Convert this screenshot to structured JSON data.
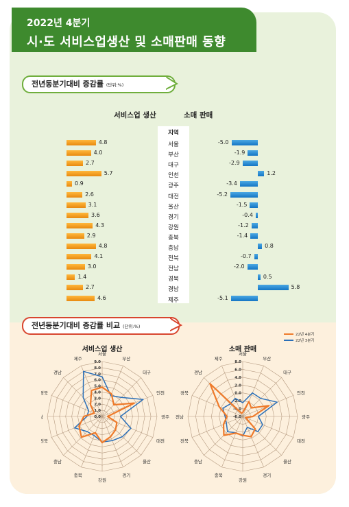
{
  "header": {
    "line1": "2022년 4분기",
    "line2": "시·도 서비스업생산 및 소매판매 동향"
  },
  "section1": {
    "title": "전년동분기대비 증감률",
    "unit": "(단위:%)"
  },
  "section2": {
    "title": "전년동분기대비 증감률 비교",
    "unit": "(단위:%)"
  },
  "colors": {
    "service": "#f39a1e",
    "retail": "#1e7fcc",
    "q4_2022": "#ee7a2a",
    "q3_2022": "#2a6fb8"
  },
  "chart_data": [
    {
      "type": "bar",
      "title": "",
      "series_labels": [
        "서비스업 생산",
        "소매 판매"
      ],
      "region_header": "지역",
      "categories": [
        "서울",
        "부산",
        "대구",
        "인천",
        "광주",
        "대전",
        "울산",
        "경기",
        "강원",
        "충북",
        "충남",
        "전북",
        "전남",
        "경북",
        "경남",
        "제주"
      ],
      "series": [
        {
          "name": "서비스업 생산",
          "values": [
            4.8,
            4.0,
            2.7,
            5.7,
            0.9,
            2.6,
            3.1,
            3.6,
            4.3,
            2.9,
            4.8,
            4.1,
            3.0,
            1.4,
            2.7,
            4.6
          ]
        },
        {
          "name": "소매 판매",
          "values": [
            -5.0,
            -1.9,
            -2.9,
            1.2,
            -3.4,
            -5.2,
            -1.5,
            -0.4,
            -1.2,
            -1.4,
            0.8,
            -0.7,
            -2.0,
            0.5,
            5.8,
            -5.1
          ]
        }
      ]
    },
    {
      "type": "radar",
      "title": "서비스업 생산",
      "categories": [
        "서울",
        "부산",
        "대구",
        "인천",
        "광주",
        "대전",
        "울산",
        "경기",
        "강원",
        "충북",
        "충남",
        "전북",
        "전남",
        "경북",
        "경남",
        "제주"
      ],
      "ticks": [
        "0.0",
        "1.0",
        "2.0",
        "3.0",
        "4.0",
        "5.0",
        "6.0",
        "7.0",
        "8.0",
        "9.0"
      ],
      "range": [
        0,
        9
      ],
      "series": [
        {
          "name": "22년 4분기",
          "values": [
            4.8,
            4.0,
            2.7,
            5.7,
            0.9,
            2.6,
            3.1,
            3.6,
            4.3,
            2.9,
            4.8,
            4.1,
            3.0,
            1.4,
            2.7,
            4.6
          ]
        },
        {
          "name": "22년 3분기",
          "values": [
            6.5,
            3.7,
            4.4,
            7.3,
            3.0,
            5.1,
            4.7,
            4.3,
            4.2,
            3.4,
            3.5,
            4.9,
            2.5,
            2.4,
            4.4,
            8.0
          ]
        }
      ]
    },
    {
      "type": "radar",
      "title": "소매 판매",
      "categories": [
        "서울",
        "부산",
        "대구",
        "인천",
        "광주",
        "대전",
        "울산",
        "경기",
        "강원",
        "충북",
        "충남",
        "전북",
        "전남",
        "경북",
        "경남",
        "제주"
      ],
      "ticks": [
        "-6.0",
        "-4.0",
        "-2.0",
        "0.0",
        "2.0",
        "4.0",
        "6.0",
        "8.0"
      ],
      "range": [
        -6,
        8
      ],
      "series": [
        {
          "name": "22년 4분기",
          "values": [
            -5.0,
            -1.9,
            -2.9,
            1.2,
            -3.4,
            -5.2,
            -1.5,
            -0.4,
            -1.2,
            -1.4,
            0.8,
            -0.7,
            -2.0,
            0.5,
            5.8,
            -5.1
          ]
        },
        {
          "name": "22년 3분기",
          "values": [
            -2.5,
            0.5,
            0.5,
            3.5,
            -2.0,
            -0.5,
            -0.5,
            -3.0,
            -1.0,
            -1.5,
            -0.5,
            -1.5,
            -1.5,
            -0.5,
            -1.5,
            -1.0
          ]
        }
      ]
    }
  ]
}
